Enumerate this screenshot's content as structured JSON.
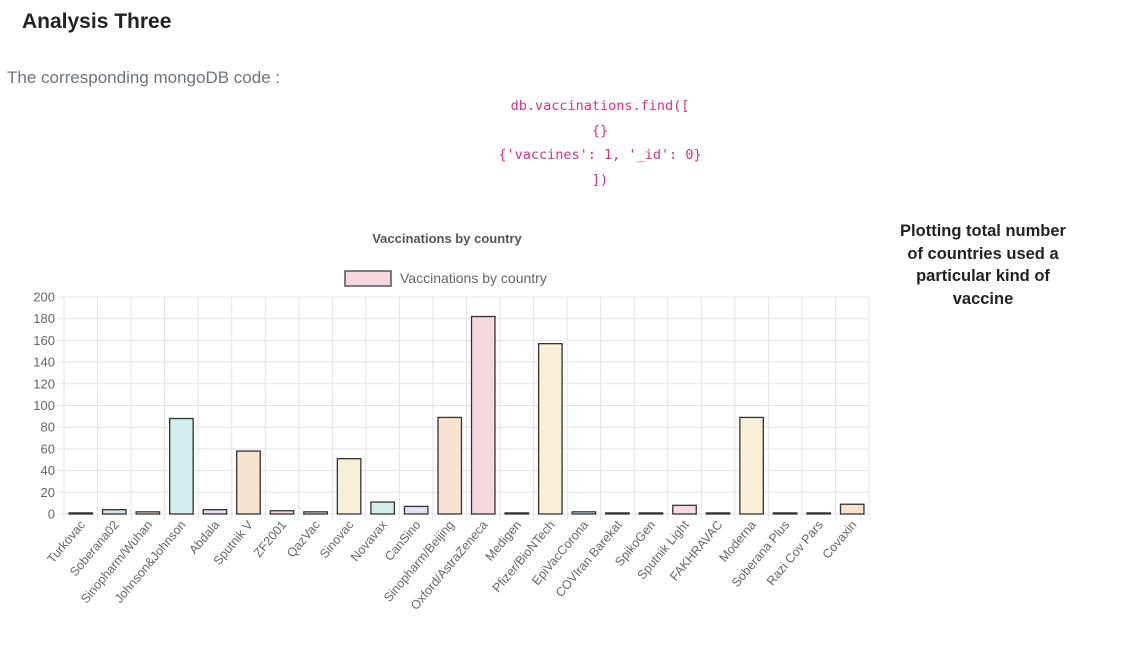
{
  "section_title": "Analysis Three",
  "code_intro": "The corresponding mongoDB code :",
  "code_lines": [
    "db.vaccinations.find([",
    "{}",
    "{'vaccines': 1, '_id': 0}",
    "])"
  ],
  "side_caption": "Plotting total number of countries used a particular kind of vaccine",
  "chart_data": {
    "type": "bar",
    "title": "Vaccinations by country",
    "legend_position": "top",
    "grid": true,
    "ylim": [
      0,
      200
    ],
    "y_ticks": [
      0,
      20,
      40,
      60,
      80,
      100,
      120,
      140,
      160,
      180,
      200
    ],
    "categories": [
      "Turkovac",
      "Soberana02",
      "Sinopharm/Wuhan",
      "Johnson&Johnson",
      "Abdala",
      "Sputnik V",
      "ZF2001",
      "QazVac",
      "Sinovac",
      "Novavax",
      "CanSino",
      "Sinopharm/Beijing",
      "Oxford/AstraZeneca",
      "Medigen",
      "Pfizer/BioNTech",
      "EpiVacCorona",
      "COVIran Barekat",
      "SpikoGen",
      "Sputnik Light",
      "FAKHRAVAC",
      "Moderna",
      "Soberana Plus",
      "Razi Cov Pars",
      "Covaxin"
    ],
    "series": [
      {
        "name": "Vaccinations by country",
        "values": [
          1,
          4,
          2,
          88,
          4,
          58,
          3,
          2,
          51,
          11,
          7,
          89,
          182,
          1,
          157,
          2,
          1,
          1,
          8,
          1,
          89,
          1,
          1,
          9
        ],
        "fill_colors": [
          "#e8e0f0",
          "#cfe6ec",
          "#f5e8d8",
          "#d3ecec",
          "#e6dcf4",
          "#f7e3cf",
          "#f7d8df",
          "#e3e3e3",
          "#f7f0d6",
          "#d3ecec",
          "#e6dcf4",
          "#f7e3cf",
          "#f7d8df",
          "#e3e3e3",
          "#f7f0d6",
          "#d3ecec",
          "#e6dcf4",
          "#f7e3cf",
          "#f7d8df",
          "#e3e3e3",
          "#f7f0d6",
          "#d3ecec",
          "#e6dcf4",
          "#f7e3cf"
        ],
        "legend_color": "#f7d8df"
      }
    ]
  }
}
